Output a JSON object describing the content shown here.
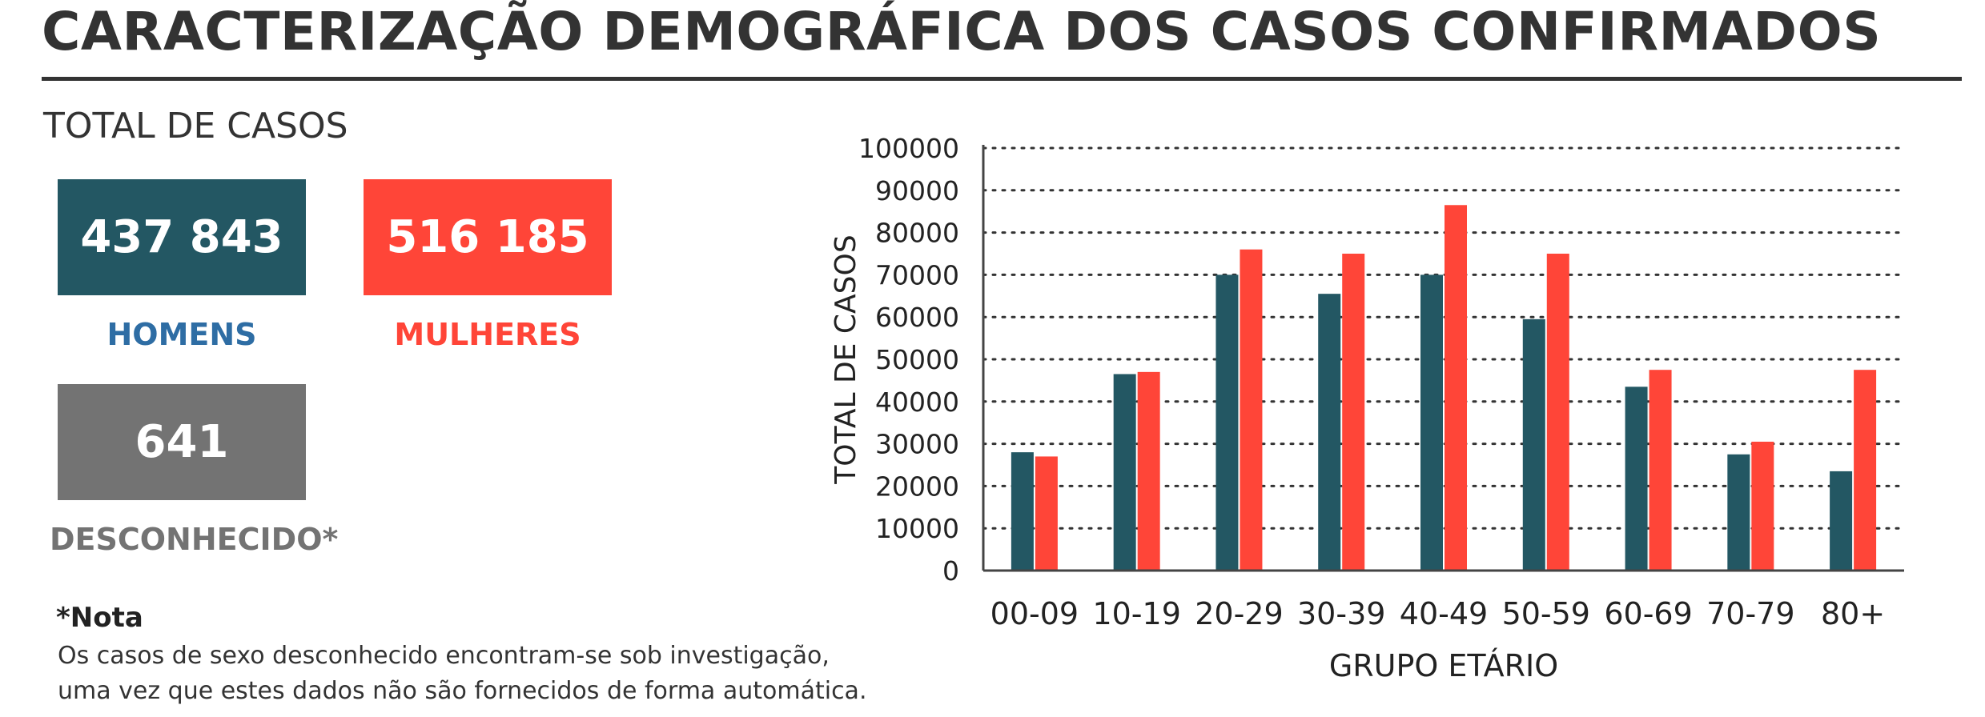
{
  "header": {
    "title": "CARACTERIZAÇÃO DEMOGRÁFICA DOS CASOS CONFIRMADOS"
  },
  "totals": {
    "heading": "TOTAL DE CASOS",
    "men": {
      "value": "437 843",
      "label": "HOMENS",
      "color": "#235763"
    },
    "women": {
      "value": "516 185",
      "label": "MULHERES",
      "color": "#FF4538"
    },
    "unknown": {
      "value": "641",
      "label": "DESCONHECIDO*",
      "color": "#737373"
    }
  },
  "note": {
    "title": "*Nota",
    "line1": "Os casos de sexo desconhecido encontram-se sob investigação,",
    "line2": "uma vez que estes dados não são fornecidos de forma automática."
  },
  "chart_data": {
    "type": "bar",
    "xlabel": "GRUPO ETÁRIO",
    "ylabel": "TOTAL DE CASOS",
    "ylim": [
      0,
      100000
    ],
    "yticks": [
      0,
      10000,
      20000,
      30000,
      40000,
      50000,
      60000,
      70000,
      80000,
      90000,
      100000
    ],
    "grid": true,
    "categories": [
      "00-09",
      "10-19",
      "20-29",
      "30-39",
      "40-49",
      "50-59",
      "60-69",
      "70-79",
      "80+"
    ],
    "series": [
      {
        "color": "#235763",
        "values": [
          28000,
          46500,
          70000,
          65500,
          70000,
          59500,
          43500,
          27500,
          23500
        ]
      },
      {
        "color": "#FF4538",
        "values": [
          27000,
          47000,
          76000,
          75000,
          86500,
          75000,
          47500,
          30500,
          47500
        ]
      }
    ]
  }
}
